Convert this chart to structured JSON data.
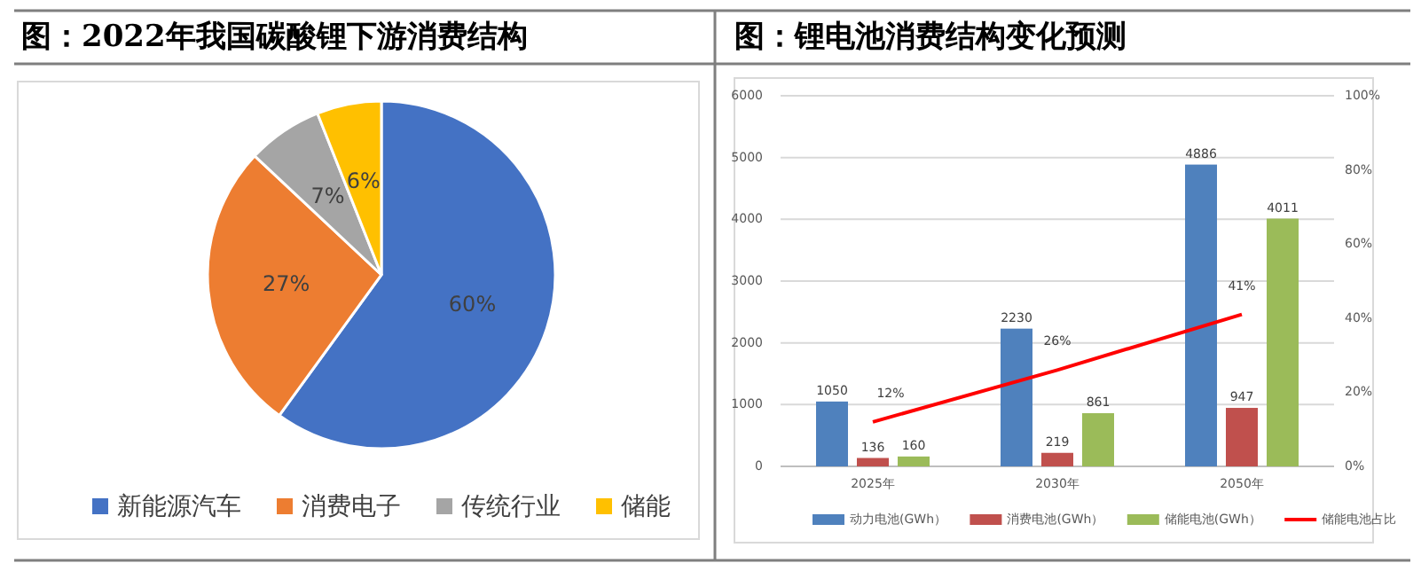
{
  "chart_data": [
    {
      "type": "pie",
      "title": "图：2022年我国碳酸锂下游消费结构",
      "categories": [
        "新能源汽车",
        "消费电子",
        "传统行业",
        "储能"
      ],
      "values": [
        60,
        27,
        7,
        6
      ],
      "colors": [
        "#4472c4",
        "#ed7d31",
        "#a5a5a5",
        "#ffc000"
      ],
      "value_labels": [
        "60%",
        "27%",
        "7%",
        "6%"
      ],
      "legend": "bottom"
    },
    {
      "type": "bar",
      "title": "图：锂电池消费结构变化预测",
      "categories": [
        "2025年",
        "2030年",
        "2050年"
      ],
      "series": [
        {
          "name": "动力电池(GWh）",
          "color": "#4f81bd",
          "values": [
            1050,
            2230,
            4886
          ]
        },
        {
          "name": "消费电池(GWh）",
          "color": "#c0504d",
          "values": [
            136,
            219,
            947
          ]
        },
        {
          "name": "储能电池(GWh）",
          "color": "#9bbb59",
          "values": [
            160,
            861,
            4011
          ]
        },
        {
          "name": "储能电池占比",
          "type": "line",
          "axis": "y2",
          "color": "#ff0000",
          "values": [
            12,
            26,
            41
          ],
          "value_labels": [
            "12%",
            "26%",
            "41%"
          ]
        }
      ],
      "ylim": [
        0,
        6000
      ],
      "yticks": [
        0,
        1000,
        2000,
        3000,
        4000,
        5000,
        6000
      ],
      "y2lim": [
        0,
        100
      ],
      "y2ticks": [
        {
          "value": 0,
          "label": "0%"
        },
        {
          "value": 20,
          "label": "20%"
        },
        {
          "value": 40,
          "label": "40%"
        },
        {
          "value": 60,
          "label": "60%"
        },
        {
          "value": 80,
          "label": "80%"
        },
        {
          "value": 100,
          "label": "100%"
        }
      ],
      "data_labels": true,
      "grid": "y",
      "legend": "bottom"
    }
  ]
}
